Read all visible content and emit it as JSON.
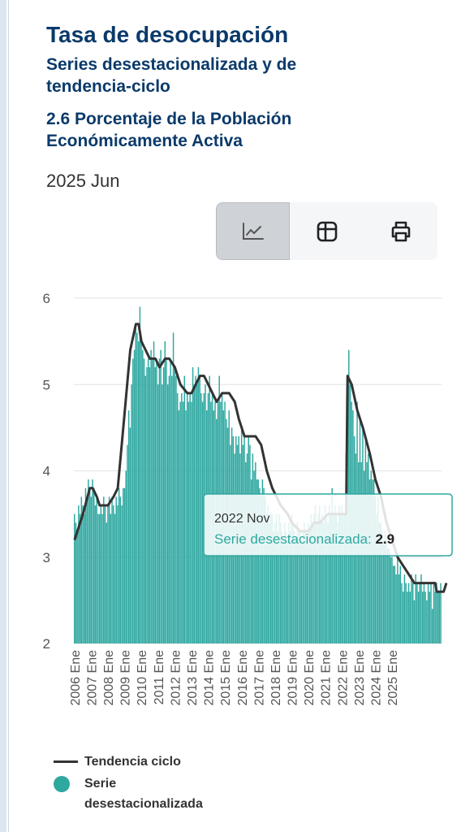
{
  "header": {
    "title": "Tasa de desocupación",
    "subtitle": "Series desestacionalizada y de tendencia-ciclo",
    "measure": "2.6  Porcentaje de la Población Económicamente Activa",
    "period": "2025 Jun"
  },
  "toolbar": {
    "buttons": [
      {
        "icon": "line-chart-icon",
        "active": true
      },
      {
        "icon": "table-icon",
        "active": false
      },
      {
        "icon": "print-icon",
        "active": false
      }
    ]
  },
  "colors": {
    "bar": "#2fa8a0",
    "trend": "#333333",
    "title": "#0b3a6a"
  },
  "tooltip": {
    "date": "2022 Nov",
    "series": "Serie desestacionalizada",
    "value": "2.9"
  },
  "legend": {
    "trend_label": "Tendencia ciclo",
    "series_label": "Serie desestacionalizada"
  },
  "chart_data": {
    "type": "bar",
    "start": "2006-01",
    "frequency": "monthly",
    "ylim": [
      2,
      6
    ],
    "yticks": [
      "2",
      "3",
      "4",
      "5",
      "6"
    ],
    "xticks": [
      "2006 Ene",
      "2007 Ene",
      "2008 Ene",
      "2009 Ene",
      "2010 Ene",
      "2011 Ene",
      "2012 Ene",
      "2013 Ene",
      "2014 Ene",
      "2015 Ene",
      "2016 Ene",
      "2017 Ene",
      "2018 Ene",
      "2019 Ene",
      "2020 Ene",
      "2021 Ene",
      "2022 Ene",
      "2023 Ene",
      "2024 Ene",
      "2025 Ene"
    ],
    "grid": true,
    "legend_position": "bottom-left",
    "series": [
      {
        "name": "Serie desestacionalizada",
        "kind": "bar"
      },
      {
        "name": "Tendencia ciclo",
        "kind": "line"
      }
    ],
    "seasonally_adjusted": [
      3.5,
      3.4,
      3.3,
      3.6,
      3.5,
      3.7,
      3.6,
      3.5,
      3.8,
      3.7,
      3.9,
      3.8,
      3.7,
      3.9,
      3.8,
      3.6,
      3.7,
      3.5,
      3.5,
      3.6,
      3.5,
      3.7,
      3.6,
      3.4,
      3.6,
      3.7,
      3.5,
      3.7,
      3.6,
      3.5,
      3.7,
      3.6,
      3.8,
      3.7,
      3.6,
      3.8,
      3.8,
      4.0,
      4.3,
      4.7,
      4.5,
      5.0,
      5.3,
      5.4,
      5.7,
      5.6,
      5.5,
      5.9,
      5.5,
      5.4,
      5.3,
      5.1,
      5.2,
      5.3,
      5.2,
      5.4,
      5.3,
      5.5,
      5.2,
      5.3,
      5.0,
      5.3,
      5.4,
      5.0,
      5.2,
      5.5,
      5.3,
      5.0,
      5.1,
      5.3,
      5.1,
      5.6,
      5.2,
      5.1,
      4.9,
      4.7,
      4.8,
      4.9,
      4.8,
      5.1,
      4.7,
      4.9,
      4.8,
      4.9,
      4.8,
      5.2,
      5.0,
      5.1,
      5.0,
      5.2,
      5.1,
      4.9,
      4.8,
      4.9,
      5.0,
      4.7,
      4.9,
      5.1,
      4.8,
      4.9,
      4.7,
      4.8,
      4.6,
      4.8,
      5.1,
      4.8,
      4.9,
      4.7,
      4.8,
      4.6,
      4.5,
      4.7,
      4.3,
      4.5,
      4.4,
      4.2,
      4.4,
      4.3,
      4.4,
      4.2,
      4.5,
      4.3,
      4.4,
      4.1,
      4.2,
      4.4,
      4.3,
      3.9,
      4.2,
      4.0,
      4.1,
      3.9,
      3.9,
      3.8,
      3.7,
      3.9,
      3.8,
      3.7,
      3.5,
      3.6,
      3.4,
      3.5,
      3.5,
      3.3,
      3.4,
      3.5,
      3.3,
      3.5,
      3.4,
      3.3,
      3.2,
      3.4,
      3.3,
      3.2,
      3.4,
      3.3,
      3.5,
      3.4,
      3.3,
      3.2,
      3.4,
      3.3,
      3.3,
      3.2,
      3.3,
      3.4,
      3.3,
      3.2,
      3.4,
      3.3,
      3.5,
      3.4,
      3.5,
      3.6,
      3.4,
      3.5,
      3.6,
      3.4,
      3.5,
      3.4,
      3.6,
      3.5,
      3.4,
      3.6,
      3.5,
      3.8,
      3.5,
      3.6,
      3.5,
      3.4,
      3.6,
      3.5,
      3.6,
      3.5,
      3.5,
      4.2,
      5.1,
      5.4,
      5.0,
      4.8,
      4.7,
      4.4,
      4.2,
      4.8,
      4.1,
      4.6,
      4.1,
      4.5,
      4.0,
      4.4,
      4.1,
      4.2,
      3.9,
      4.0,
      3.9,
      3.9,
      3.7,
      3.5,
      3.7,
      3.4,
      3.4,
      3.3,
      3.2,
      3.3,
      3.2,
      3.1,
      3.1,
      3.0,
      3.0,
      2.9,
      2.9,
      2.8,
      3.0,
      2.8,
      2.9,
      2.7,
      2.6,
      2.8,
      2.7,
      2.6,
      2.7,
      2.6,
      2.8,
      2.7,
      2.5,
      2.8,
      2.7,
      2.6,
      2.7,
      2.8,
      2.6,
      2.7,
      2.6,
      2.5,
      2.7,
      2.6,
      2.7,
      2.4,
      2.7,
      2.6,
      2.7,
      2.6,
      2.6,
      2.7
    ],
    "trend_cycle": [
      [
        0,
        3.2
      ],
      [
        6,
        3.5
      ],
      [
        11,
        3.8
      ],
      [
        13,
        3.8
      ],
      [
        16,
        3.7
      ],
      [
        18,
        3.6
      ],
      [
        24,
        3.6
      ],
      [
        28,
        3.7
      ],
      [
        31,
        3.8
      ],
      [
        35,
        4.5
      ],
      [
        40,
        5.4
      ],
      [
        44,
        5.7
      ],
      [
        46,
        5.7
      ],
      [
        48,
        5.5
      ],
      [
        54,
        5.3
      ],
      [
        58,
        5.3
      ],
      [
        61,
        5.2
      ],
      [
        65,
        5.3
      ],
      [
        68,
        5.3
      ],
      [
        72,
        5.2
      ],
      [
        76,
        5.0
      ],
      [
        81,
        4.9
      ],
      [
        84,
        4.9
      ],
      [
        90,
        5.1
      ],
      [
        93,
        5.1
      ],
      [
        96,
        5.0
      ],
      [
        102,
        4.8
      ],
      [
        106,
        4.9
      ],
      [
        111,
        4.9
      ],
      [
        115,
        4.8
      ],
      [
        118,
        4.6
      ],
      [
        122,
        4.4
      ],
      [
        130,
        4.4
      ],
      [
        134,
        4.3
      ],
      [
        138,
        4.0
      ],
      [
        142,
        3.8
      ],
      [
        148,
        3.6
      ],
      [
        153,
        3.5
      ],
      [
        156,
        3.4
      ],
      [
        162,
        3.3
      ],
      [
        168,
        3.3
      ],
      [
        172,
        3.4
      ],
      [
        176,
        3.4
      ],
      [
        182,
        3.5
      ],
      [
        186,
        3.5
      ],
      [
        190,
        3.5
      ],
      [
        195,
        3.5
      ],
      [
        196,
        5.1
      ],
      [
        199,
        5.0
      ],
      [
        203,
        4.7
      ],
      [
        207,
        4.5
      ],
      [
        212,
        4.2
      ],
      [
        216,
        3.9
      ],
      [
        220,
        3.7
      ],
      [
        224,
        3.4
      ],
      [
        228,
        3.2
      ],
      [
        232,
        3.0
      ],
      [
        236,
        2.9
      ],
      [
        240,
        2.8
      ],
      [
        244,
        2.7
      ],
      [
        247,
        2.7
      ],
      [
        256,
        2.7
      ],
      [
        259,
        2.7
      ],
      [
        260,
        2.6
      ],
      [
        265,
        2.6
      ],
      [
        267,
        2.7
      ]
    ]
  }
}
